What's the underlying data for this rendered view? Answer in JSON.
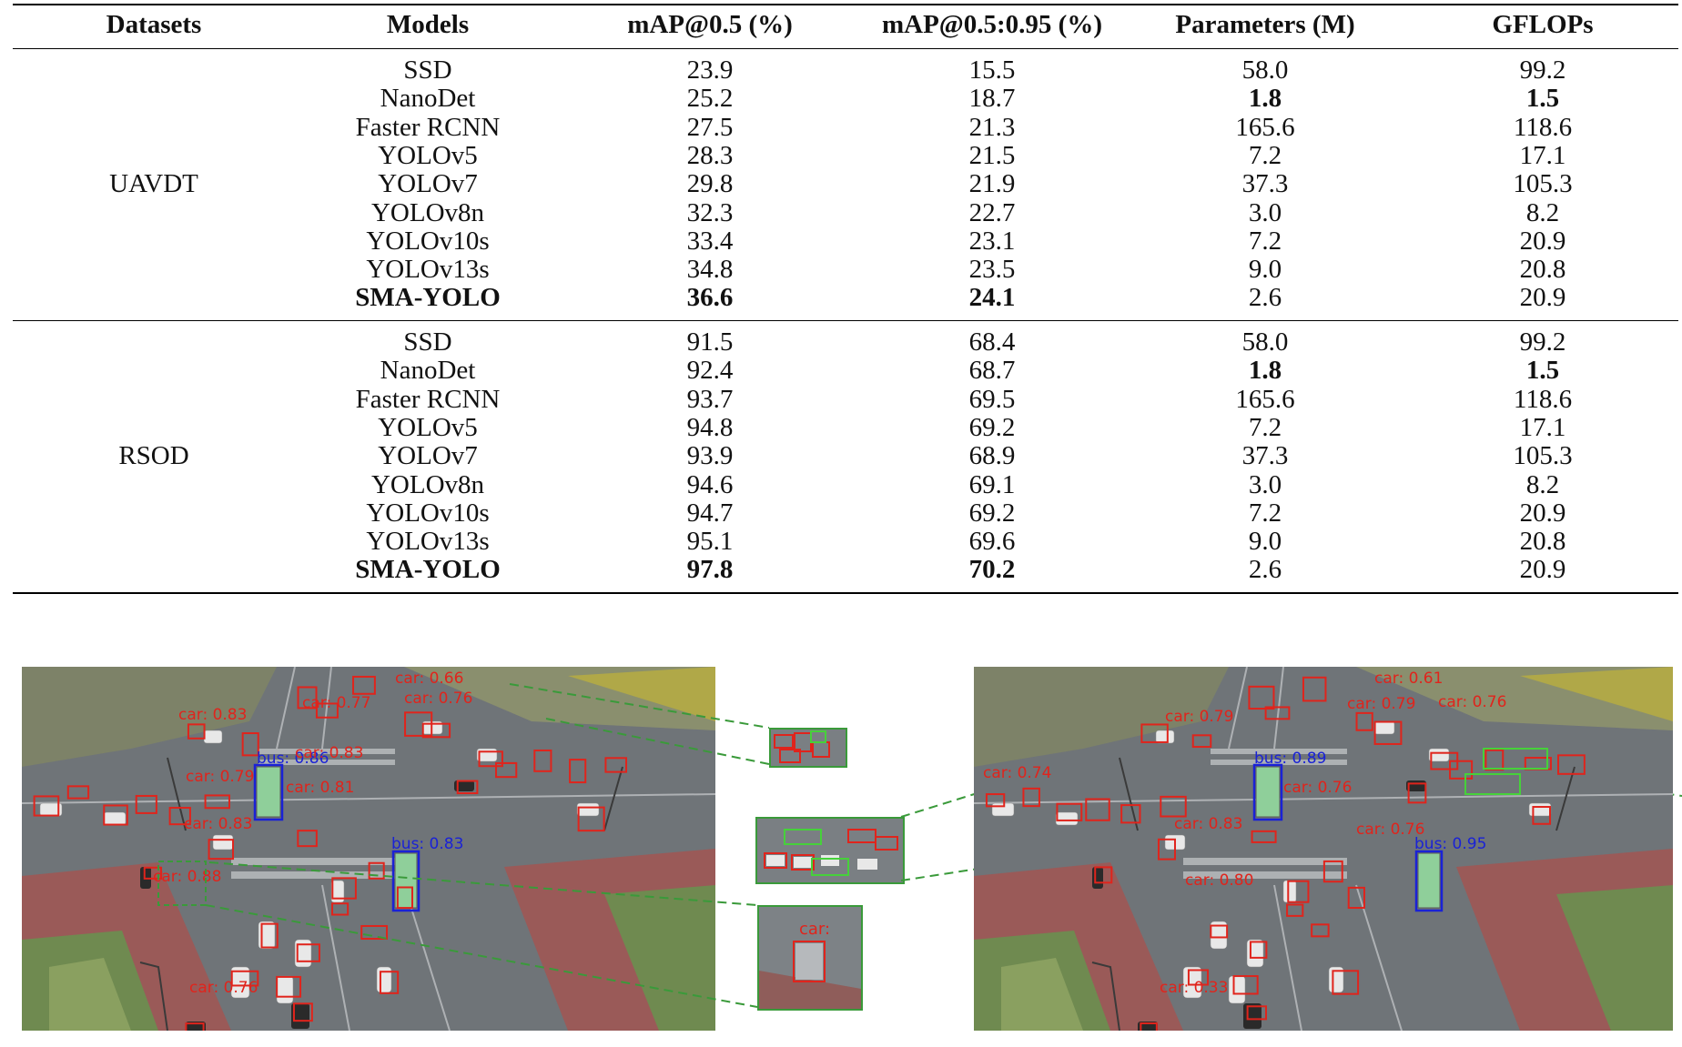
{
  "table": {
    "headers": [
      "Datasets",
      "Models",
      "mAP@0.5 (%)",
      "mAP@0.5:0.95 (%)",
      "Parameters (M)",
      "GFLOPs"
    ],
    "groups": [
      {
        "dataset": "UAVDT",
        "rows": [
          {
            "model": "SSD",
            "map50": "23.9",
            "map5095": "15.5",
            "params": "58.0",
            "gflops": "99.2"
          },
          {
            "model": "NanoDet",
            "map50": "25.2",
            "map5095": "18.7",
            "params": "1.8",
            "gflops": "1.5",
            "bold": [
              "params",
              "gflops"
            ]
          },
          {
            "model": "Faster RCNN",
            "map50": "27.5",
            "map5095": "21.3",
            "params": "165.6",
            "gflops": "118.6"
          },
          {
            "model": "YOLOv5",
            "map50": "28.3",
            "map5095": "21.5",
            "params": "7.2",
            "gflops": "17.1"
          },
          {
            "model": "YOLOv7",
            "map50": "29.8",
            "map5095": "21.9",
            "params": "37.3",
            "gflops": "105.3"
          },
          {
            "model": "YOLOv8n",
            "map50": "32.3",
            "map5095": "22.7",
            "params": "3.0",
            "gflops": "8.2"
          },
          {
            "model": "YOLOv10s",
            "map50": "33.4",
            "map5095": "23.1",
            "params": "7.2",
            "gflops": "20.9"
          },
          {
            "model": "YOLOv13s",
            "map50": "34.8",
            "map5095": "23.5",
            "params": "9.0",
            "gflops": "20.8"
          },
          {
            "model": "SMA-YOLO",
            "map50": "36.6",
            "map5095": "24.1",
            "params": "2.6",
            "gflops": "20.9",
            "bold": [
              "model",
              "map50",
              "map5095"
            ]
          }
        ]
      },
      {
        "dataset": "RSOD",
        "rows": [
          {
            "model": "SSD",
            "map50": "91.5",
            "map5095": "68.4",
            "params": "58.0",
            "gflops": "99.2"
          },
          {
            "model": "NanoDet",
            "map50": "92.4",
            "map5095": "68.7",
            "params": "1.8",
            "gflops": "1.5",
            "bold": [
              "params",
              "gflops"
            ]
          },
          {
            "model": "Faster RCNN",
            "map50": "93.7",
            "map5095": "69.5",
            "params": "165.6",
            "gflops": "118.6"
          },
          {
            "model": "YOLOv5",
            "map50": "94.8",
            "map5095": "69.2",
            "params": "7.2",
            "gflops": "17.1"
          },
          {
            "model": "YOLOv7",
            "map50": "93.9",
            "map5095": "68.9",
            "params": "37.3",
            "gflops": "105.3"
          },
          {
            "model": "YOLOv8n",
            "map50": "94.6",
            "map5095": "69.1",
            "params": "3.0",
            "gflops": "8.2"
          },
          {
            "model": "YOLOv10s",
            "map50": "94.7",
            "map5095": "69.2",
            "params": "7.2",
            "gflops": "20.9"
          },
          {
            "model": "YOLOv13s",
            "map50": "95.1",
            "map5095": "69.6",
            "params": "9.0",
            "gflops": "20.8"
          },
          {
            "model": "SMA-YOLO",
            "map50": "97.8",
            "map5095": "70.2",
            "params": "2.6",
            "gflops": "20.9",
            "bold": [
              "model",
              "map50",
              "map5095"
            ]
          }
        ]
      }
    ]
  },
  "figure": {
    "left_labels": {
      "bus_top": "bus: 0.86",
      "bus_right": "bus: 0.83",
      "car_a": "car: 0.83",
      "car_b": "car: 0.77",
      "car_c": "car: 0.76",
      "car_d": "car: 0.81",
      "car_e": "car: 0.83",
      "car_f": "car: 0.83",
      "car_g": "car: 0.88",
      "car_h": "car: 0.76",
      "car_i": "car: 0.79",
      "car_j": "car: 0.66"
    },
    "right_labels": {
      "bus_top": "bus: 0.89",
      "bus_right": "bus: 0.95",
      "car_a": "car: 0.79",
      "car_b": "car: 0.79",
      "car_c": "car: 0.76",
      "car_d": "car: 0.76",
      "car_e": "car: 0.83",
      "car_f": "car: 0.76",
      "car_g": "car: 0.80",
      "car_h": "car: 0.33",
      "car_i": "car: 0.74",
      "car_j": "car: 0.61"
    },
    "inset_label": "car:",
    "colors": {
      "car_box": "#e0241c",
      "bus_box": "#1a22d6",
      "zoom_line": "#3a9a3a",
      "road": "#6f7478"
    }
  }
}
